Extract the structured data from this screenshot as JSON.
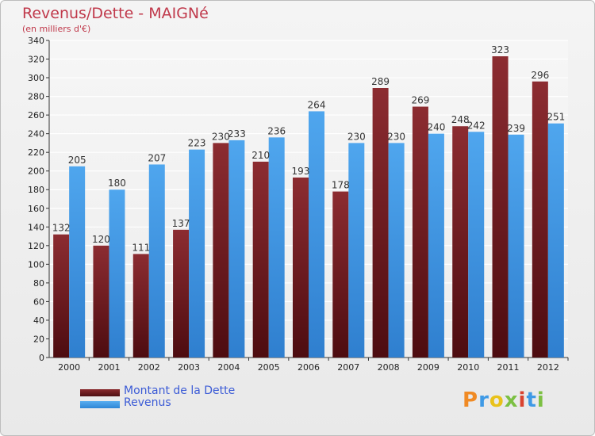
{
  "title": "Revenus/Dette - MAIGNé",
  "subtitle": "(en milliers d'€)",
  "legend": {
    "debt_label": "Montant de la Dette",
    "revenue_label": "Revenus"
  },
  "logo": {
    "text": "Proxiti"
  },
  "colors": {
    "debt": "#7a1f24",
    "revenue": "#3f9ae6",
    "title": "#c0394b",
    "legend_text": "#3b5bd6"
  },
  "chart_data": {
    "type": "bar",
    "title": "Revenus/Dette - MAIGNé",
    "subtitle": "(en milliers d'€)",
    "categories": [
      "2000",
      "2001",
      "2002",
      "2003",
      "2004",
      "2005",
      "2006",
      "2007",
      "2008",
      "2009",
      "2010",
      "2011",
      "2012"
    ],
    "series": [
      {
        "name": "Montant de la Dette",
        "values": [
          132,
          120,
          111,
          137,
          230,
          210,
          193,
          178,
          289,
          269,
          248,
          323,
          296
        ]
      },
      {
        "name": "Revenus",
        "values": [
          205,
          180,
          207,
          223,
          233,
          236,
          264,
          230,
          230,
          240,
          242,
          239,
          251
        ]
      }
    ],
    "ylim": [
      0,
      340
    ],
    "yticks": [
      0,
      20,
      40,
      60,
      80,
      100,
      120,
      140,
      160,
      180,
      200,
      220,
      240,
      260,
      280,
      300,
      320,
      340
    ],
    "grid": true,
    "legend_position": "bottom-left"
  }
}
